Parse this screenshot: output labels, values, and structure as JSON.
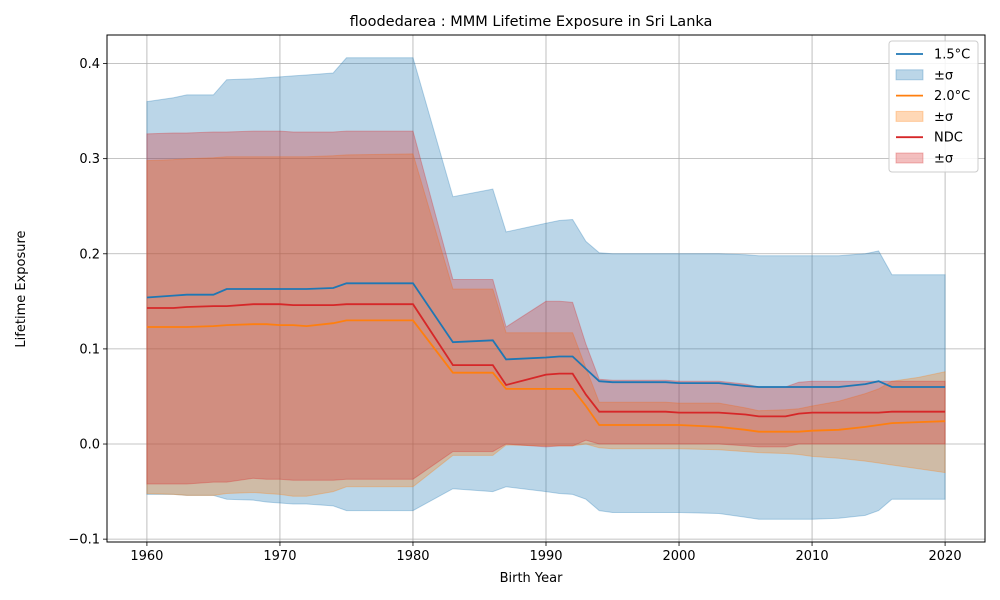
{
  "chart_data": {
    "type": "line",
    "title": "floodedarea : MMM Lifetime Exposure in Sri Lanka",
    "xlabel": "Birth Year",
    "ylabel": "Lifetime Exposure",
    "xlim": [
      1957,
      2023
    ],
    "ylim": [
      -0.103,
      0.43
    ],
    "xticks": [
      1960,
      1970,
      1980,
      1990,
      2000,
      2010,
      2020
    ],
    "yticks": [
      -0.1,
      0.0,
      0.1,
      0.2,
      0.3,
      0.4
    ],
    "xtick_labels": [
      "1960",
      "1970",
      "1980",
      "1990",
      "2000",
      "2010",
      "2020"
    ],
    "ytick_labels": [
      "−0.1",
      "0.0",
      "0.1",
      "0.2",
      "0.3",
      "0.4"
    ],
    "grid": true,
    "legend_position": "top-right",
    "x": [
      1960,
      1962,
      1963,
      1965,
      1966,
      1968,
      1969,
      1970,
      1971,
      1972,
      1974,
      1975,
      1980,
      1983,
      1986,
      1987,
      1990,
      1991,
      1992,
      1993,
      1994,
      1995,
      1997,
      1999,
      2000,
      2003,
      2005,
      2006,
      2008,
      2009,
      2010,
      2012,
      2014,
      2015,
      2016,
      2018,
      2020
    ],
    "series": [
      {
        "name": "1.5°C",
        "color": "#1f77b4",
        "values": [
          0.154,
          0.156,
          0.157,
          0.157,
          0.163,
          0.163,
          0.163,
          0.163,
          0.163,
          0.163,
          0.164,
          0.169,
          0.169,
          0.107,
          0.109,
          0.089,
          0.091,
          0.092,
          0.092,
          0.079,
          0.066,
          0.065,
          0.065,
          0.065,
          0.064,
          0.064,
          0.061,
          0.06,
          0.06,
          0.06,
          0.06,
          0.06,
          0.063,
          0.066,
          0.06,
          0.06,
          0.06
        ],
        "upper": [
          0.36,
          0.364,
          0.367,
          0.367,
          0.383,
          0.384,
          0.385,
          0.386,
          0.387,
          0.388,
          0.39,
          0.406,
          0.406,
          0.26,
          0.268,
          0.223,
          0.232,
          0.235,
          0.236,
          0.213,
          0.201,
          0.2,
          0.2,
          0.2,
          0.2,
          0.2,
          0.199,
          0.198,
          0.198,
          0.198,
          0.198,
          0.198,
          0.2,
          0.203,
          0.178,
          0.178,
          0.178
        ],
        "lower": [
          -0.053,
          -0.053,
          -0.054,
          -0.054,
          -0.058,
          -0.059,
          -0.061,
          -0.062,
          -0.063,
          -0.063,
          -0.065,
          -0.07,
          -0.07,
          -0.047,
          -0.05,
          -0.045,
          -0.05,
          -0.052,
          -0.053,
          -0.058,
          -0.07,
          -0.072,
          -0.072,
          -0.072,
          -0.072,
          -0.073,
          -0.077,
          -0.079,
          -0.079,
          -0.079,
          -0.079,
          -0.078,
          -0.075,
          -0.07,
          -0.058,
          -0.058,
          -0.058
        ]
      },
      {
        "name": "2.0°C",
        "color": "#ff7f0e",
        "values": [
          0.123,
          0.123,
          0.123,
          0.124,
          0.125,
          0.126,
          0.126,
          0.125,
          0.125,
          0.124,
          0.127,
          0.13,
          0.13,
          0.075,
          0.075,
          0.058,
          0.058,
          0.058,
          0.058,
          0.04,
          0.02,
          0.02,
          0.02,
          0.02,
          0.02,
          0.018,
          0.015,
          0.013,
          0.013,
          0.013,
          0.014,
          0.015,
          0.018,
          0.02,
          0.022,
          0.023,
          0.024
        ],
        "upper": [
          0.298,
          0.299,
          0.3,
          0.301,
          0.302,
          0.302,
          0.302,
          0.302,
          0.302,
          0.302,
          0.303,
          0.304,
          0.305,
          0.163,
          0.163,
          0.117,
          0.117,
          0.117,
          0.117,
          0.08,
          0.044,
          0.044,
          0.044,
          0.044,
          0.043,
          0.043,
          0.038,
          0.035,
          0.036,
          0.037,
          0.04,
          0.045,
          0.053,
          0.058,
          0.066,
          0.07,
          0.076
        ],
        "lower": [
          -0.052,
          -0.053,
          -0.054,
          -0.054,
          -0.052,
          -0.051,
          -0.052,
          -0.053,
          -0.055,
          -0.055,
          -0.05,
          -0.045,
          -0.045,
          -0.012,
          -0.012,
          -0.001,
          -0.002,
          -0.002,
          -0.002,
          0.0,
          -0.004,
          -0.005,
          -0.005,
          -0.005,
          -0.005,
          -0.006,
          -0.008,
          -0.009,
          -0.01,
          -0.011,
          -0.013,
          -0.015,
          -0.018,
          -0.02,
          -0.022,
          -0.026,
          -0.03
        ]
      },
      {
        "name": "NDC",
        "color": "#d62728",
        "values": [
          0.143,
          0.143,
          0.144,
          0.145,
          0.145,
          0.147,
          0.147,
          0.147,
          0.146,
          0.146,
          0.146,
          0.147,
          0.147,
          0.083,
          0.083,
          0.062,
          0.073,
          0.074,
          0.074,
          0.052,
          0.034,
          0.034,
          0.034,
          0.034,
          0.033,
          0.033,
          0.031,
          0.029,
          0.029,
          0.032,
          0.033,
          0.033,
          0.033,
          0.033,
          0.034,
          0.034,
          0.034
        ],
        "upper": [
          0.326,
          0.327,
          0.327,
          0.328,
          0.328,
          0.329,
          0.329,
          0.329,
          0.328,
          0.328,
          0.328,
          0.329,
          0.329,
          0.173,
          0.173,
          0.123,
          0.15,
          0.15,
          0.149,
          0.105,
          0.068,
          0.067,
          0.067,
          0.067,
          0.066,
          0.066,
          0.063,
          0.06,
          0.06,
          0.065,
          0.066,
          0.066,
          0.066,
          0.066,
          0.066,
          0.066,
          0.066
        ],
        "lower": [
          -0.042,
          -0.042,
          -0.042,
          -0.04,
          -0.04,
          -0.036,
          -0.037,
          -0.037,
          -0.038,
          -0.038,
          -0.038,
          -0.037,
          -0.037,
          -0.008,
          -0.008,
          0.0,
          -0.003,
          -0.002,
          -0.002,
          0.004,
          0.0,
          0.0,
          0.0,
          0.0,
          0.0,
          0.0,
          -0.002,
          -0.003,
          -0.003,
          0.0,
          0.0,
          0.0,
          0.0,
          0.0,
          0.0,
          0.0,
          0.0
        ]
      }
    ],
    "legend": [
      {
        "label": "1.5°C",
        "kind": "line",
        "color": "#1f77b4"
      },
      {
        "label": "±σ",
        "kind": "band",
        "color": "#1f77b4"
      },
      {
        "label": "2.0°C",
        "kind": "line",
        "color": "#ff7f0e"
      },
      {
        "label": "±σ",
        "kind": "band",
        "color": "#ff7f0e"
      },
      {
        "label": "NDC",
        "kind": "line",
        "color": "#d62728"
      },
      {
        "label": "±σ",
        "kind": "band",
        "color": "#d62728"
      }
    ],
    "colors": {
      "grid": "#b0b0b0",
      "axis": "#000000"
    }
  }
}
